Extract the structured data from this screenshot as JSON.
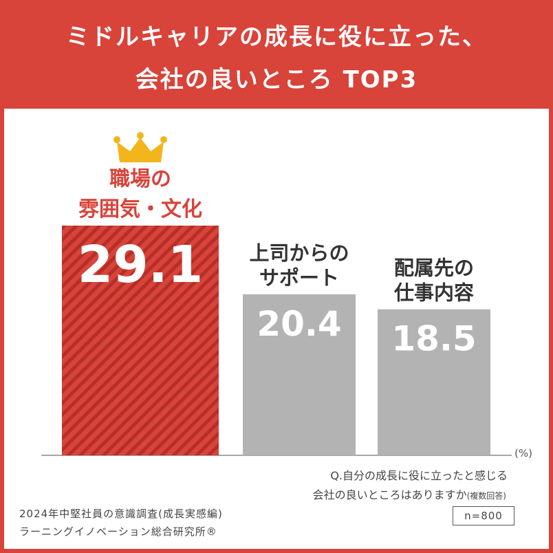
{
  "title": {
    "line1": "ミドルキャリアの成長に役に立った、",
    "line2": "会社の良いところ TOP3"
  },
  "chart_data": {
    "type": "bar",
    "categories": [
      [
        "職場の",
        "雰囲気・文化"
      ],
      [
        "上司からの",
        "サポート"
      ],
      [
        "配属先の",
        "仕事内容"
      ]
    ],
    "values": [
      29.1,
      20.4,
      18.5
    ],
    "value_labels": [
      "29.1",
      "20.4",
      "18.5"
    ],
    "ylim": [
      0,
      29.1
    ],
    "unit": "(%)",
    "highlight_index": 0,
    "highlight_icon": "crown-icon",
    "colors": {
      "highlight": "#d8433a",
      "highlight_stripe": "#b52f28",
      "default": "#b3b3b3",
      "highlight_label": "#d8433a",
      "default_label": "#333333",
      "crown": "#f3b51c"
    }
  },
  "question": {
    "line1": "Q.自分の成長に役に立ったと感じる",
    "line2": "会社の良いところはありますか",
    "note": "(複数回答)"
  },
  "sample": "n=800",
  "source": {
    "line1": "2024年中堅社員の意識調査(成長実感編)",
    "line2": "ラーニングイノベーション総合研究所®"
  },
  "colors": {
    "background": "#d8433a",
    "panel": "#ffffff"
  }
}
